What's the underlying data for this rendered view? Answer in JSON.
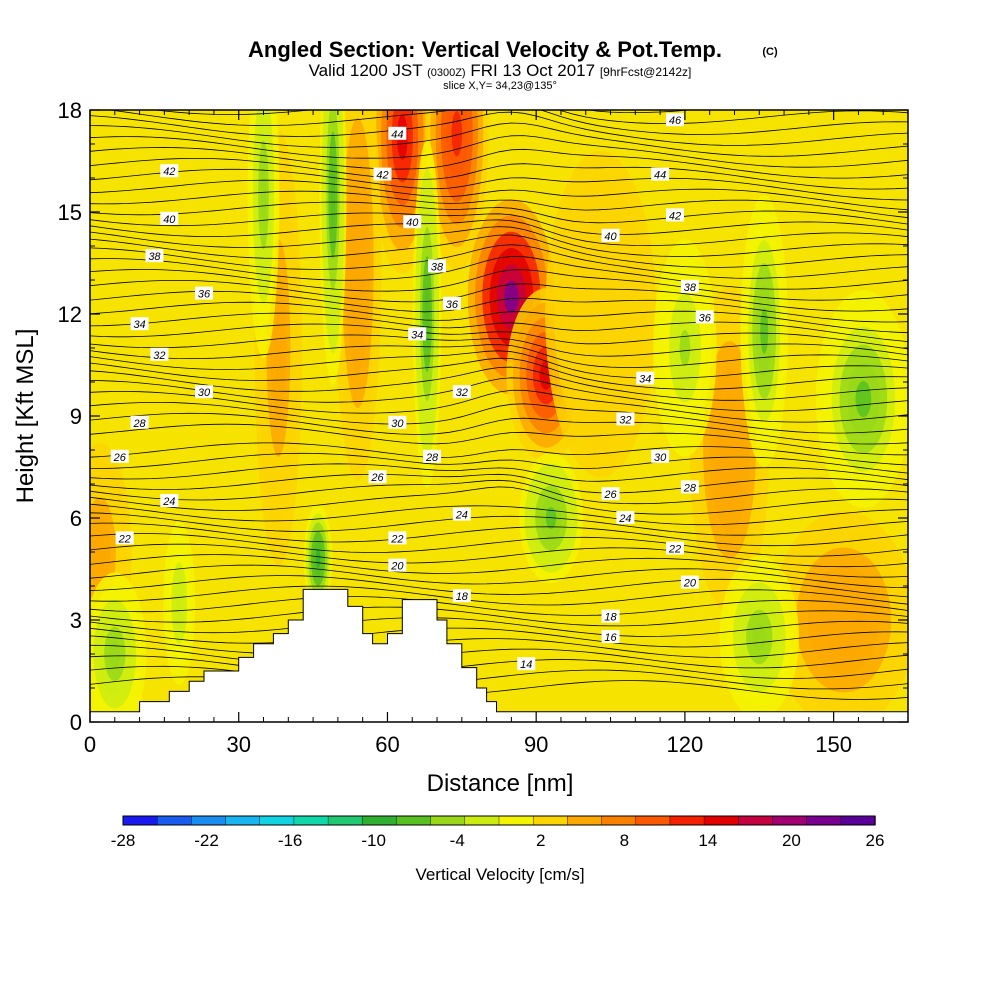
{
  "chart_data": {
    "type": "heatmap",
    "title": "Angled Section: Vertical Velocity & Pot.Temp.",
    "title_mark": "(C)",
    "subtitle_parts": [
      "Valid 1200 JST",
      "(0300Z)",
      "FRI 13 Oct 2017",
      "[9hrFcst@2142z]"
    ],
    "subtitle2": "slice X,Y= 34,23@135°",
    "xlabel": "Distance [nm]",
    "ylabel": "Height [Kft MSL]",
    "xlim": [
      0,
      165
    ],
    "ylim": [
      0,
      18
    ],
    "xticks": [
      0,
      30,
      60,
      90,
      120,
      150
    ],
    "yticks": [
      0,
      3,
      6,
      9,
      12,
      15,
      18
    ],
    "colorbar": {
      "title": "Vertical Velocity [cm/s]",
      "tick_labels": [
        "-28",
        "-22",
        "-16",
        "-10",
        "-4",
        "2",
        "8",
        "14",
        "20",
        "26"
      ],
      "colors": [
        "#1a1af0",
        "#1a5cf0",
        "#1a8ef0",
        "#18b4f0",
        "#10d2e0",
        "#10d8a8",
        "#20c870",
        "#30b030",
        "#58c020",
        "#98d818",
        "#ccec10",
        "#f4f400",
        "#fcd400",
        "#fca800",
        "#fc8000",
        "#fc5800",
        "#f42000",
        "#e00000",
        "#c40040",
        "#a00070",
        "#7a0090",
        "#5a0098"
      ]
    },
    "theta_labels": [
      {
        "x": 62,
        "y": 17.3,
        "t": "44"
      },
      {
        "x": 59,
        "y": 16.1,
        "t": "42"
      },
      {
        "x": 65,
        "y": 14.7,
        "t": "40"
      },
      {
        "x": 70,
        "y": 13.4,
        "t": "38"
      },
      {
        "x": 73,
        "y": 12.3,
        "t": "36"
      },
      {
        "x": 66,
        "y": 11.4,
        "t": "34"
      },
      {
        "x": 75,
        "y": 9.7,
        "t": "32"
      },
      {
        "x": 62,
        "y": 8.8,
        "t": "30"
      },
      {
        "x": 69,
        "y": 7.8,
        "t": "28"
      },
      {
        "x": 58,
        "y": 7.2,
        "t": "26"
      },
      {
        "x": 75,
        "y": 6.1,
        "t": "24"
      },
      {
        "x": 62,
        "y": 5.4,
        "t": "22"
      },
      {
        "x": 62,
        "y": 4.6,
        "t": "20"
      },
      {
        "x": 75,
        "y": 3.7,
        "t": "18"
      },
      {
        "x": 88,
        "y": 1.7,
        "t": "14"
      },
      {
        "x": 16,
        "y": 16.2,
        "t": "42"
      },
      {
        "x": 16,
        "y": 14.8,
        "t": "40"
      },
      {
        "x": 13,
        "y": 13.7,
        "t": "38"
      },
      {
        "x": 23,
        "y": 12.6,
        "t": "36"
      },
      {
        "x": 10,
        "y": 11.7,
        "t": "34"
      },
      {
        "x": 14,
        "y": 10.8,
        "t": "32"
      },
      {
        "x": 23,
        "y": 9.7,
        "t": "30"
      },
      {
        "x": 10,
        "y": 8.8,
        "t": "28"
      },
      {
        "x": 6,
        "y": 7.8,
        "t": "26"
      },
      {
        "x": 16,
        "y": 6.5,
        "t": "24"
      },
      {
        "x": 7,
        "y": 5.4,
        "t": "22"
      },
      {
        "x": 118,
        "y": 17.7,
        "t": "46"
      },
      {
        "x": 115,
        "y": 16.1,
        "t": "44"
      },
      {
        "x": 118,
        "y": 14.9,
        "t": "42"
      },
      {
        "x": 105,
        "y": 14.3,
        "t": "40"
      },
      {
        "x": 121,
        "y": 12.8,
        "t": "38"
      },
      {
        "x": 124,
        "y": 11.9,
        "t": "36"
      },
      {
        "x": 112,
        "y": 10.1,
        "t": "34"
      },
      {
        "x": 108,
        "y": 8.9,
        "t": "32"
      },
      {
        "x": 115,
        "y": 7.8,
        "t": "30"
      },
      {
        "x": 121,
        "y": 6.9,
        "t": "28"
      },
      {
        "x": 105,
        "y": 6.7,
        "t": "26"
      },
      {
        "x": 108,
        "y": 6.0,
        "t": "24"
      },
      {
        "x": 118,
        "y": 5.1,
        "t": "22"
      },
      {
        "x": 121,
        "y": 4.1,
        "t": "20"
      },
      {
        "x": 105,
        "y": 3.1,
        "t": "18"
      },
      {
        "x": 105,
        "y": 2.5,
        "t": "16"
      }
    ],
    "terrain": [
      [
        0,
        0.3
      ],
      [
        10,
        0.3
      ],
      [
        10,
        0.6
      ],
      [
        16,
        0.6
      ],
      [
        16,
        0.9
      ],
      [
        20,
        0.9
      ],
      [
        20,
        1.2
      ],
      [
        23,
        1.2
      ],
      [
        23,
        1.5
      ],
      [
        30,
        1.5
      ],
      [
        30,
        1.9
      ],
      [
        33,
        1.9
      ],
      [
        33,
        2.3
      ],
      [
        37,
        2.3
      ],
      [
        37,
        2.6
      ],
      [
        40,
        2.6
      ],
      [
        40,
        3.0
      ],
      [
        43,
        3.0
      ],
      [
        43,
        3.9
      ],
      [
        52,
        3.9
      ],
      [
        52,
        3.4
      ],
      [
        55,
        3.4
      ],
      [
        55,
        2.6
      ],
      [
        57,
        2.6
      ],
      [
        57,
        2.3
      ],
      [
        60,
        2.3
      ],
      [
        60,
        2.6
      ],
      [
        63,
        2.6
      ],
      [
        63,
        3.6
      ],
      [
        70,
        3.6
      ],
      [
        70,
        3.0
      ],
      [
        72,
        3.0
      ],
      [
        72,
        2.3
      ],
      [
        75,
        2.3
      ],
      [
        75,
        1.6
      ],
      [
        78,
        1.6
      ],
      [
        78,
        1.0
      ],
      [
        80,
        1.0
      ],
      [
        80,
        0.6
      ],
      [
        82,
        0.6
      ],
      [
        82,
        0.3
      ],
      [
        165,
        0.3
      ]
    ],
    "updrafts": [
      {
        "x": 63,
        "y": 17.2,
        "sx": 4,
        "sy": 2.5,
        "v": 16
      },
      {
        "x": 74,
        "y": 17.3,
        "sx": 4,
        "sy": 2.5,
        "v": 14
      },
      {
        "x": 85,
        "y": 12.5,
        "sx": 5.5,
        "sy": 1.8,
        "v": 24
      },
      {
        "x": 92,
        "y": 10.2,
        "sx": 5,
        "sy": 1.6,
        "v": 16
      },
      {
        "x": 54,
        "y": 13.5,
        "sx": 3,
        "sy": 4,
        "v": 7
      },
      {
        "x": 38,
        "y": 11,
        "sx": 3,
        "sy": 4,
        "v": 6
      },
      {
        "x": 129,
        "y": 8,
        "sx": 5,
        "sy": 3,
        "v": 7
      },
      {
        "x": 152,
        "y": 3,
        "sx": 9,
        "sy": 2,
        "v": 7
      },
      {
        "x": 103,
        "y": 12,
        "sx": 7,
        "sy": 3,
        "v": 4
      },
      {
        "x": 2,
        "y": 5,
        "sx": 4,
        "sy": 2,
        "v": 6
      }
    ],
    "downdrafts": [
      {
        "x": 49,
        "y": 15.5,
        "sx": 1.7,
        "sy": 3.5,
        "v": -9
      },
      {
        "x": 35,
        "y": 15.5,
        "sx": 2,
        "sy": 3,
        "v": -5
      },
      {
        "x": 68,
        "y": 12,
        "sx": 1.8,
        "sy": 3.2,
        "v": -9
      },
      {
        "x": 46,
        "y": 4.8,
        "sx": 1.8,
        "sy": 1,
        "v": -11
      },
      {
        "x": 93,
        "y": 6,
        "sx": 4,
        "sy": 1.2,
        "v": -8
      },
      {
        "x": 136,
        "y": 11.5,
        "sx": 3,
        "sy": 2.5,
        "v": -7
      },
      {
        "x": 156,
        "y": 9.5,
        "sx": 6,
        "sy": 2,
        "v": -7
      },
      {
        "x": 120,
        "y": 11,
        "sx": 4,
        "sy": 2,
        "v": -4
      },
      {
        "x": 135,
        "y": 2.5,
        "sx": 5,
        "sy": 1.5,
        "v": -5
      },
      {
        "x": 5,
        "y": 2,
        "sx": 4,
        "sy": 1.5,
        "v": -5
      },
      {
        "x": 18,
        "y": 3.5,
        "sx": 2,
        "sy": 1.5,
        "v": -3
      }
    ]
  }
}
